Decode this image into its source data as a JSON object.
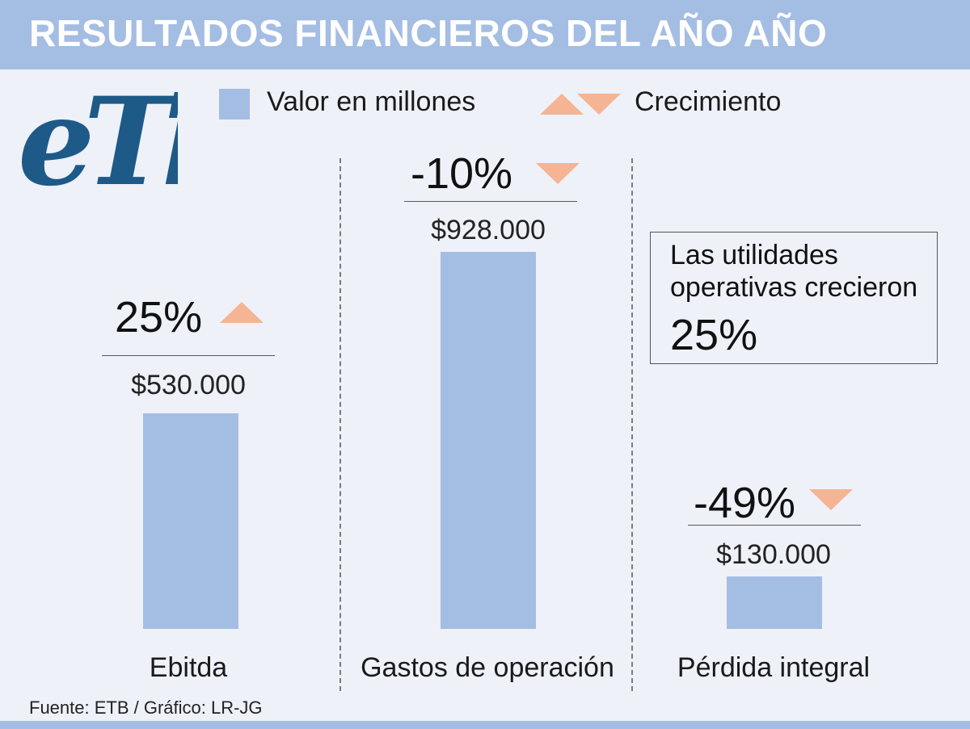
{
  "header": {
    "title": "RESULTADOS FINANCIEROS DEL AÑO AÑO"
  },
  "logo": {
    "text": "eTb"
  },
  "legend": {
    "value_label": "Valor en millones",
    "growth_label": "Crecimiento"
  },
  "colors": {
    "bar": "#a4bde3",
    "arrow": "#f5b494",
    "header": "#a4bde3"
  },
  "chart_data": {
    "type": "bar",
    "title": "RESULTADOS FINANCIEROS DEL AÑO AÑO",
    "categories": [
      "Ebitda",
      "Gastos de operación",
      "Pérdida integral"
    ],
    "series": [
      {
        "name": "Valor en millones",
        "values": [
          530000,
          928000,
          130000
        ]
      }
    ],
    "value_labels": [
      "$530.000",
      "$928.000",
      "$130.000"
    ],
    "growth_labels": [
      "25%",
      "-10%",
      "-49%"
    ],
    "growth_direction": [
      "up",
      "down",
      "down"
    ],
    "units": "millones"
  },
  "note": {
    "text": "Las utilidades operativas crecieron",
    "value": "25%"
  },
  "source": "Fuente: ETB / Gráfico: LR-JG"
}
